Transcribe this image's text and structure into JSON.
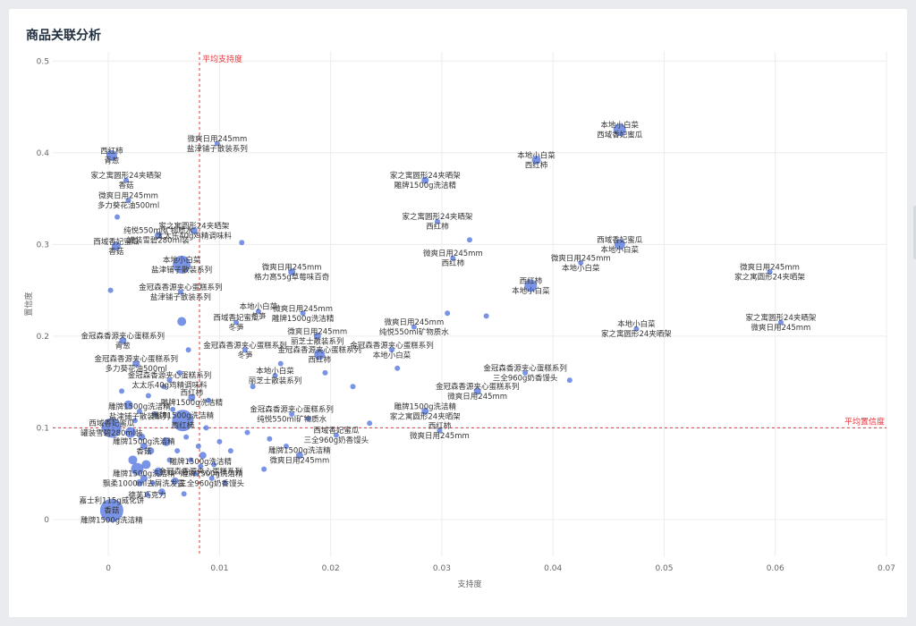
{
  "page": {
    "title": "商品关联分析"
  },
  "chart_data": {
    "type": "scatter",
    "title": "商品关联分析",
    "xlabel": "支持度",
    "ylabel": "置信度",
    "xlim": [
      -0.005,
      0.07
    ],
    "ylim": [
      -0.04,
      0.51
    ],
    "xticks": [
      0,
      0.01,
      0.02,
      0.03,
      0.04,
      0.05,
      0.06,
      0.07
    ],
    "yticks": [
      0,
      0.1,
      0.2,
      0.3,
      0.4,
      0.5
    ],
    "grid": true,
    "ref_lines": {
      "avg_support": {
        "value": 0.0082,
        "label": "平均支持度"
      },
      "avg_confidence": {
        "value": 0.1,
        "label": "平均置信度"
      }
    },
    "points": [
      {
        "x": 0.0003,
        "y": 0.01,
        "r": 13,
        "labels": [
          "嘉士利115g威化饼",
          "香菇",
          "雕牌1500g洗洁精"
        ]
      },
      {
        "x": 0.0003,
        "y": 0.1,
        "r": 11,
        "labels": [
          "西域香妃蜜瓜",
          "罐装雪碧280ml装"
        ]
      },
      {
        "x": 0.0003,
        "y": 0.397,
        "r": 6,
        "labels": [
          "西红柿",
          "青葱"
        ]
      },
      {
        "x": 0.0007,
        "y": 0.298,
        "r": 5,
        "labels": [
          "西域香妃蜜瓜",
          "香菇"
        ]
      },
      {
        "x": 0.0013,
        "y": 0.195,
        "r": 4,
        "labels": [
          "金冠森香源夹心蛋糕系列",
          "青葱"
        ]
      },
      {
        "x": 0.0016,
        "y": 0.37,
        "r": 3,
        "labels": [
          "家之寓圆形24夹晒架",
          "香菇"
        ]
      },
      {
        "x": 0.0018,
        "y": 0.348,
        "r": 3,
        "labels": [
          "微爽日用245mm",
          "多力葵花油500ml"
        ]
      },
      {
        "x": 0.0025,
        "y": 0.17,
        "r": 4,
        "labels": [
          "金冠森香源夹心蛋糕系列",
          "多力葵花油500ml"
        ]
      },
      {
        "x": 0.0028,
        "y": 0.118,
        "r": 3,
        "labels": [
          "雕牌1500g洗洁精",
          "盐津铺子散装系列"
        ]
      },
      {
        "x": 0.0032,
        "y": 0.08,
        "r": 4,
        "labels": [
          "雕牌1500g洗洁精",
          "香菇"
        ]
      },
      {
        "x": 0.0032,
        "y": 0.045,
        "r": 4,
        "labels": [
          "雕牌1500g洗洁精",
          "飘柔1000ml去屑洗发露"
        ]
      },
      {
        "x": 0.0035,
        "y": 0.027,
        "r": 3,
        "labels": [
          "德芙巧克力"
        ]
      },
      {
        "x": 0.0045,
        "y": 0.31,
        "r": 4,
        "labels": [
          "纯悦550ml矿物质水",
          "罐装雪碧280ml装"
        ]
      },
      {
        "x": 0.0055,
        "y": 0.152,
        "r": 3,
        "labels": [
          "金冠森香源夹心蛋糕系列",
          "太太乐40g鸡精调味料"
        ]
      },
      {
        "x": 0.0066,
        "y": 0.278,
        "r": 10,
        "labels": [
          "本地小白菜",
          "盐津铺子散装系列"
        ]
      },
      {
        "x": 0.0065,
        "y": 0.248,
        "r": 3,
        "labels": [
          "金冠森香源夹心蛋糕系列",
          "盐津铺子散装系列"
        ]
      },
      {
        "x": 0.0066,
        "y": 0.216,
        "r": 5,
        "labels": []
      },
      {
        "x": 0.0067,
        "y": 0.108,
        "r": 12,
        "labels": [
          "雕牌1500g洗洁精",
          "西红柿"
        ]
      },
      {
        "x": 0.0075,
        "y": 0.133,
        "r": 4,
        "labels": [
          "西红柿",
          "雕牌1500g洗洁精"
        ]
      },
      {
        "x": 0.0077,
        "y": 0.315,
        "r": 4,
        "labels": [
          "家之寓圆形24夹晒架",
          "太太乐40g鸡精调味料"
        ]
      },
      {
        "x": 0.0098,
        "y": 0.41,
        "r": 3,
        "labels": [
          "微爽日用245mm",
          "盐津铺子散装系列"
        ]
      },
      {
        "x": 0.0083,
        "y": 0.058,
        "r": 3,
        "labels": [
          "雕牌1500g洗洁精",
          "金冠森香源夹心蛋糕系列"
        ]
      },
      {
        "x": 0.0093,
        "y": 0.045,
        "r": 3,
        "labels": [
          "雕牌1500g洗洁精",
          "三全960g奶香馒头"
        ]
      },
      {
        "x": 0.0115,
        "y": 0.215,
        "r": 3,
        "labels": [
          "西域香妃蜜瓜",
          "冬笋"
        ]
      },
      {
        "x": 0.0123,
        "y": 0.185,
        "r": 3,
        "labels": [
          "金冠森香源夹心蛋糕系列",
          "冬笋"
        ]
      },
      {
        "x": 0.0135,
        "y": 0.227,
        "r": 3,
        "labels": [
          "本地小白菜",
          "冬笋"
        ]
      },
      {
        "x": 0.015,
        "y": 0.157,
        "r": 3,
        "labels": [
          "本地小白菜",
          "丽芝士散装系列"
        ]
      },
      {
        "x": 0.0165,
        "y": 0.115,
        "r": 3,
        "labels": [
          "金冠森香源夹心蛋糕系列",
          "纯悦550ml矿物质水"
        ]
      },
      {
        "x": 0.0165,
        "y": 0.27,
        "r": 4,
        "labels": [
          "微爽日用245mm",
          "格力高55g草莓味百奇"
        ]
      },
      {
        "x": 0.0175,
        "y": 0.225,
        "r": 3,
        "labels": [
          "微爽日用245mm",
          "雕牌1500g洗洁精"
        ]
      },
      {
        "x": 0.0172,
        "y": 0.07,
        "r": 4,
        "labels": [
          "雕牌1500g洗洁精",
          "微爽日用245mm"
        ]
      },
      {
        "x": 0.0188,
        "y": 0.2,
        "r": 4,
        "labels": [
          "微爽日用245mm",
          "丽芝士散装系列"
        ]
      },
      {
        "x": 0.019,
        "y": 0.18,
        "r": 6,
        "labels": [
          "金冠森香源夹心蛋糕系列",
          "西红柿"
        ]
      },
      {
        "x": 0.0205,
        "y": 0.092,
        "r": 3,
        "labels": [
          "西域香妃蜜瓜",
          "三全960g奶香馒头"
        ]
      },
      {
        "x": 0.0255,
        "y": 0.185,
        "r": 3,
        "labels": [
          "金冠森香源夹心蛋糕系列",
          "本地小白菜"
        ]
      },
      {
        "x": 0.0275,
        "y": 0.21,
        "r": 3,
        "labels": [
          "微爽日用245mm",
          "纯悦550ml矿物质水"
        ]
      },
      {
        "x": 0.0285,
        "y": 0.118,
        "r": 4,
        "labels": [
          "雕牌1500g洗洁精",
          "家之寓圆形24夹晒架"
        ]
      },
      {
        "x": 0.0285,
        "y": 0.37,
        "r": 4,
        "labels": [
          "家之寓圆形24夹晒架",
          "雕牌1500g洗洁精"
        ]
      },
      {
        "x": 0.0296,
        "y": 0.325,
        "r": 3,
        "labels": [
          "家之寓圆形24夹晒架",
          "西红柿"
        ]
      },
      {
        "x": 0.0298,
        "y": 0.097,
        "r": 3,
        "labels": [
          "西红柿",
          "微爽日用245mm"
        ]
      },
      {
        "x": 0.031,
        "y": 0.285,
        "r": 3,
        "labels": [
          "微爽日用245mm",
          "西红柿"
        ]
      },
      {
        "x": 0.0332,
        "y": 0.14,
        "r": 4,
        "labels": [
          "金冠森香源夹心蛋糕系列",
          "微爽日用245mm"
        ]
      },
      {
        "x": 0.034,
        "y": 0.222,
        "r": 3,
        "labels": []
      },
      {
        "x": 0.0375,
        "y": 0.16,
        "r": 3,
        "labels": [
          "金冠森香源夹心蛋糕系列",
          "三全960g奶香馒头"
        ]
      },
      {
        "x": 0.038,
        "y": 0.255,
        "r": 7,
        "labels": [
          "西红柿",
          "本地小白菜"
        ]
      },
      {
        "x": 0.0385,
        "y": 0.392,
        "r": 5,
        "labels": [
          "本地小白菜",
          "西红柿"
        ]
      },
      {
        "x": 0.0415,
        "y": 0.152,
        "r": 3,
        "labels": []
      },
      {
        "x": 0.0425,
        "y": 0.28,
        "r": 3,
        "labels": [
          "微爽日用245mm",
          "本地小白菜"
        ]
      },
      {
        "x": 0.046,
        "y": 0.425,
        "r": 7,
        "labels": [
          "本地小白菜",
          "西域香妃蜜瓜"
        ]
      },
      {
        "x": 0.046,
        "y": 0.3,
        "r": 6,
        "labels": [
          "西域香妃蜜瓜",
          "本地小白菜"
        ]
      },
      {
        "x": 0.0475,
        "y": 0.208,
        "r": 3,
        "labels": [
          "本地小白菜",
          "家之寓圆形24夹晒架"
        ]
      },
      {
        "x": 0.0595,
        "y": 0.27,
        "r": 3,
        "labels": [
          "微爽日用245mm",
          "家之寓圆形24夹晒架"
        ]
      },
      {
        "x": 0.0605,
        "y": 0.215,
        "r": 3,
        "labels": [
          "家之寓圆形24夹晒架",
          "微爽日用245mm"
        ]
      },
      {
        "x": 0.0002,
        "y": 0.25,
        "r": 3,
        "labels": []
      },
      {
        "x": 0.0008,
        "y": 0.33,
        "r": 3,
        "labels": []
      },
      {
        "x": 0.0012,
        "y": 0.14,
        "r": 3,
        "labels": []
      },
      {
        "x": 0.0018,
        "y": 0.125,
        "r": 5,
        "labels": []
      },
      {
        "x": 0.002,
        "y": 0.095,
        "r": 6,
        "labels": []
      },
      {
        "x": 0.0022,
        "y": 0.065,
        "r": 5,
        "labels": []
      },
      {
        "x": 0.0024,
        "y": 0.108,
        "r": 3,
        "labels": []
      },
      {
        "x": 0.0026,
        "y": 0.055,
        "r": 7,
        "labels": []
      },
      {
        "x": 0.0028,
        "y": 0.04,
        "r": 4,
        "labels": []
      },
      {
        "x": 0.003,
        "y": 0.09,
        "r": 4,
        "labels": []
      },
      {
        "x": 0.0034,
        "y": 0.06,
        "r": 5,
        "labels": []
      },
      {
        "x": 0.0036,
        "y": 0.135,
        "r": 3,
        "labels": []
      },
      {
        "x": 0.0038,
        "y": 0.075,
        "r": 4,
        "labels": []
      },
      {
        "x": 0.004,
        "y": 0.04,
        "r": 3,
        "labels": []
      },
      {
        "x": 0.0042,
        "y": 0.115,
        "r": 3,
        "labels": []
      },
      {
        "x": 0.0045,
        "y": 0.052,
        "r": 5,
        "labels": []
      },
      {
        "x": 0.0048,
        "y": 0.03,
        "r": 4,
        "labels": []
      },
      {
        "x": 0.005,
        "y": 0.145,
        "r": 3,
        "labels": []
      },
      {
        "x": 0.0052,
        "y": 0.085,
        "r": 5,
        "labels": []
      },
      {
        "x": 0.0055,
        "y": 0.065,
        "r": 3,
        "labels": []
      },
      {
        "x": 0.0058,
        "y": 0.12,
        "r": 3,
        "labels": []
      },
      {
        "x": 0.006,
        "y": 0.042,
        "r": 4,
        "labels": []
      },
      {
        "x": 0.0062,
        "y": 0.075,
        "r": 3,
        "labels": []
      },
      {
        "x": 0.0064,
        "y": 0.16,
        "r": 3,
        "labels": []
      },
      {
        "x": 0.0068,
        "y": 0.028,
        "r": 3,
        "labels": []
      },
      {
        "x": 0.007,
        "y": 0.09,
        "r": 3,
        "labels": []
      },
      {
        "x": 0.0072,
        "y": 0.185,
        "r": 3,
        "labels": []
      },
      {
        "x": 0.0074,
        "y": 0.065,
        "r": 3,
        "labels": []
      },
      {
        "x": 0.0078,
        "y": 0.05,
        "r": 3,
        "labels": []
      },
      {
        "x": 0.0081,
        "y": 0.08,
        "r": 3,
        "labels": []
      },
      {
        "x": 0.0085,
        "y": 0.07,
        "r": 4,
        "labels": []
      },
      {
        "x": 0.0088,
        "y": 0.1,
        "r": 3,
        "labels": []
      },
      {
        "x": 0.009,
        "y": 0.13,
        "r": 3,
        "labels": []
      },
      {
        "x": 0.0095,
        "y": 0.06,
        "r": 3,
        "labels": []
      },
      {
        "x": 0.01,
        "y": 0.085,
        "r": 3,
        "labels": []
      },
      {
        "x": 0.0105,
        "y": 0.04,
        "r": 3,
        "labels": []
      },
      {
        "x": 0.011,
        "y": 0.075,
        "r": 3,
        "labels": []
      },
      {
        "x": 0.012,
        "y": 0.302,
        "r": 3,
        "labels": []
      },
      {
        "x": 0.0125,
        "y": 0.095,
        "r": 3,
        "labels": []
      },
      {
        "x": 0.013,
        "y": 0.145,
        "r": 3,
        "labels": []
      },
      {
        "x": 0.014,
        "y": 0.055,
        "r": 3,
        "labels": []
      },
      {
        "x": 0.0145,
        "y": 0.088,
        "r": 3,
        "labels": []
      },
      {
        "x": 0.0155,
        "y": 0.17,
        "r": 3,
        "labels": []
      },
      {
        "x": 0.016,
        "y": 0.08,
        "r": 3,
        "labels": []
      },
      {
        "x": 0.018,
        "y": 0.11,
        "r": 3,
        "labels": []
      },
      {
        "x": 0.0195,
        "y": 0.16,
        "r": 3,
        "labels": []
      },
      {
        "x": 0.022,
        "y": 0.145,
        "r": 3,
        "labels": []
      },
      {
        "x": 0.0235,
        "y": 0.105,
        "r": 3,
        "labels": []
      },
      {
        "x": 0.026,
        "y": 0.165,
        "r": 3,
        "labels": []
      },
      {
        "x": 0.0305,
        "y": 0.225,
        "r": 3,
        "labels": []
      },
      {
        "x": 0.0325,
        "y": 0.305,
        "r": 3,
        "labels": []
      }
    ]
  }
}
